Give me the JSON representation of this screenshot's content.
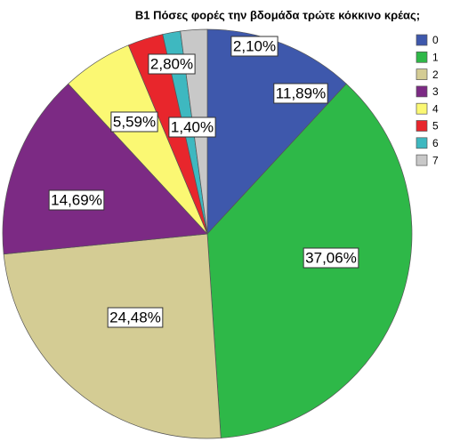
{
  "chart_data": {
    "type": "pie",
    "title": "B1 Πόσες φορές την βδομάδα τρώτε κόκκινο κρέας;",
    "categories": [
      "0",
      "1",
      "2",
      "3",
      "4",
      "5",
      "6",
      "7"
    ],
    "values": [
      11.89,
      37.06,
      24.48,
      14.69,
      5.59,
      2.8,
      1.4,
      2.1
    ],
    "value_labels": [
      "11,89%",
      "37,06%",
      "24,48%",
      "14,69%",
      "5,59%",
      "2,80%",
      "1,40%",
      "2,10%"
    ],
    "colors": [
      "#3e58ac",
      "#2eb848",
      "#d4cc94",
      "#7c2a84",
      "#fbf873",
      "#e8262c",
      "#3eb8c0",
      "#c8c8c8"
    ],
    "legend": "right"
  }
}
